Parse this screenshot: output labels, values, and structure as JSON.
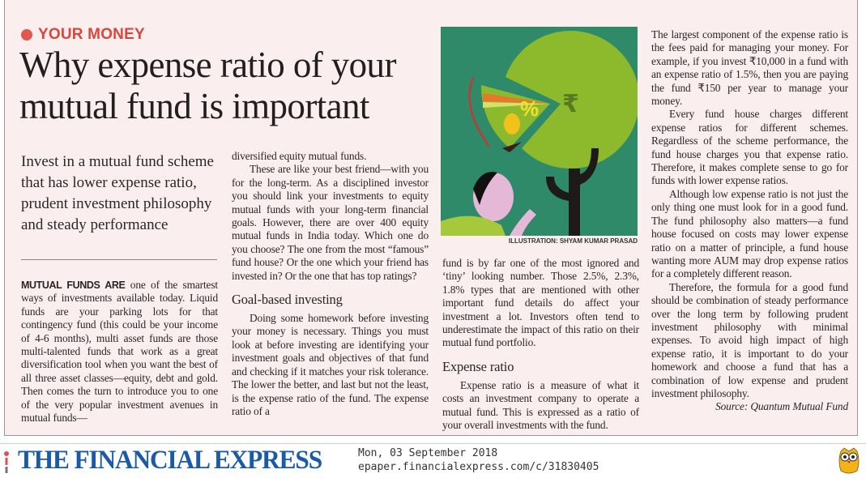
{
  "article": {
    "kicker": "YOUR MONEY",
    "headline": "Why expense ratio of your mutual fund is important",
    "deck": "Invest in a mutual fund scheme that has lower expense ratio, prudent investment philosophy and steady performance",
    "col1": {
      "lead": "MUTUAL FUNDS ARE",
      "text": " one of the smartest ways of investments available today. Liquid funds are your parking lots for that contingency fund (this could be your income of 4-6 months), multi asset funds are those multi-talented funds that work as a great diversification tool when you want the best of all three asset classes—equity, debt and gold. Then comes the turn to introduce you to one of the very popular investment avenues in mutual funds—"
    },
    "col2": {
      "p1": "diversified equity mutual funds.",
      "p2": "These are like your best friend—with you for the long-term. As a disciplined investor you should link your investments to equity mutual funds with your long-term financial goals. However, there are over 400 equity mutual funds in India today. Which one do you choose? The one from the most “famous” fund house? Or the one which your friend has invested in? Or the one that has top ratings?",
      "heading": "Goal-based investing",
      "p3": "Doing some homework before investing your money is necessary. Things you must look at before investing are identifying your investment goals and objectives of that fund and checking if it matches your risk tolerance. The lower the better, and last but not the least, is the expense ratio of the fund. The expense ratio of a"
    },
    "col3": {
      "p1": "fund is by far one of the most ignored and ‘tiny’ looking number. Those 2.5%, 2.3%, 1.8% types that are mentioned with other important fund details do affect your investment a lot. Investors often tend to underestimate the impact of this ratio on their mutual fund portfolio.",
      "heading": "Expense ratio",
      "p2": "Expense ratio is a measure of what it costs an investment company to operate a mutual fund. This is expressed as a ratio of your overall investments with the fund."
    },
    "col4": {
      "p1": "The largest component of the expense ratio is the fees paid for managing your money. For example, if you invest ₹10,000 in a fund with an expense ratio of 1.5%, then you are paying the fund ₹150 per year to manage your money.",
      "p2": "Every fund house charges different expense ratios for different schemes. Regardless of the scheme performance, the fund house charges you that expense ratio. Therefore, it makes complete sense to go for funds with lower expense ratios.",
      "p3": "Although low expense ratio is not just the only thing one must look for in a good fund. The fund philosophy also matters—a fund house focused on costs may lower expense ratio on a matter of principle, a fund house wanting more AUM may drop expense ratios for a completely different reason.",
      "p4": "Therefore, the formula for a good fund should be combination of steady performance over the long term by following prudent investment philosophy with minimal expenses. To avoid high impact of high expense ratio, it is important to do your homework and choose a fund that has a combination of low expense and prudent investment philosophy.",
      "source": "Source: Quantum Mutual Fund"
    },
    "illustration": {
      "credit": "ILLUSTRATION: SHYAM KUMAR PRASAD",
      "percent_symbol": "%",
      "rupee_symbol": "₹"
    }
  },
  "footer": {
    "logo": "THE FINANCIAL EXPRESS",
    "date": "Mon, 03 September 2018",
    "url": "epaper.financialexpress.com/c/31830405",
    "mascot_icon": "owl-icon"
  },
  "colors": {
    "accent": "#d9473c",
    "logo_blue": "#1a5aa6",
    "paper": "#fbeeee"
  }
}
